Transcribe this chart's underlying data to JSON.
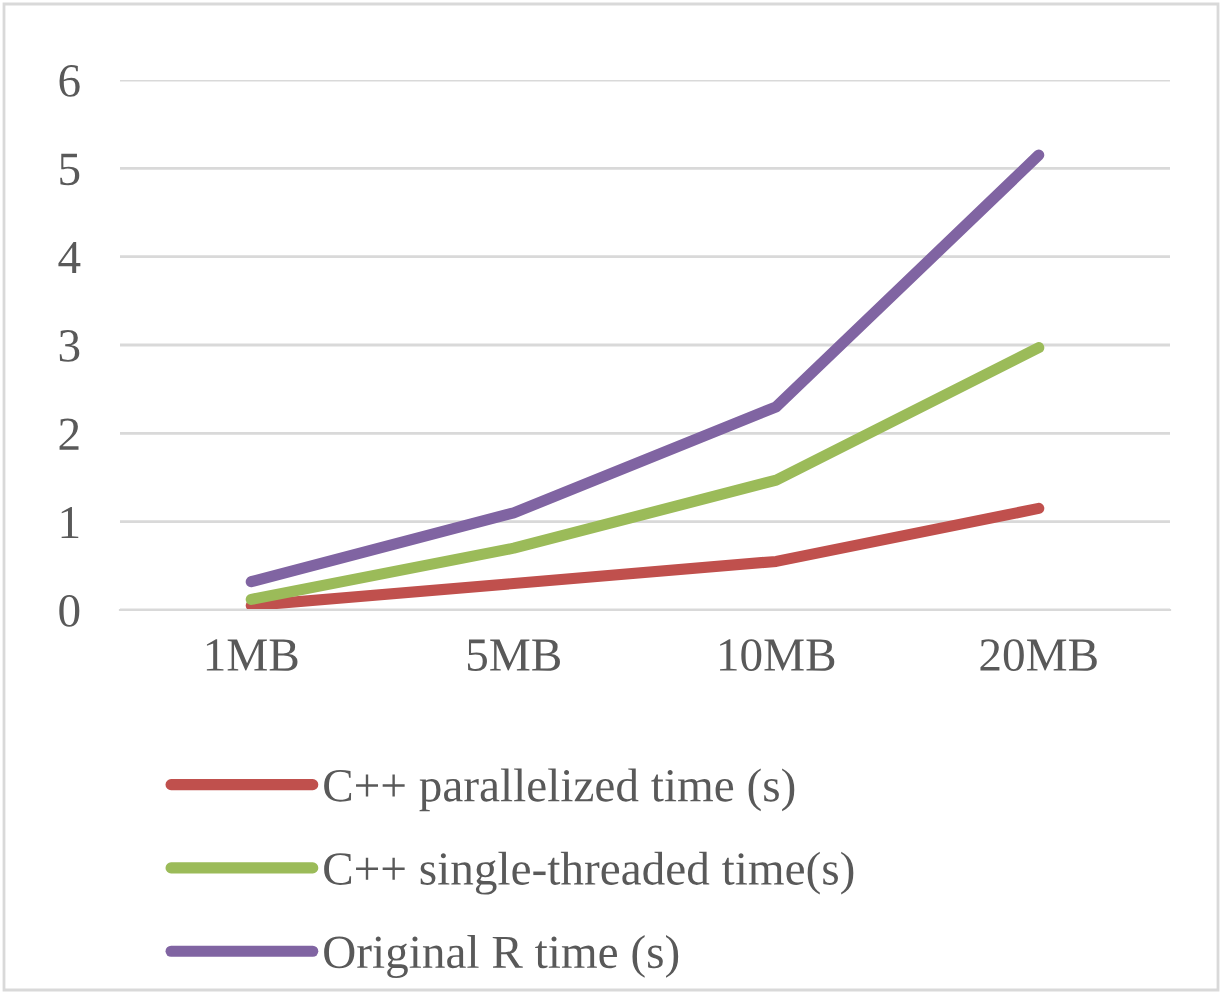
{
  "chart_data": {
    "type": "line",
    "categories": [
      "1MB",
      "5MB",
      "10MB",
      "20MB"
    ],
    "series": [
      {
        "name": "C++ parallelized time (s)",
        "color": "#c0504d",
        "values": [
          0.05,
          0.3,
          0.55,
          1.15
        ]
      },
      {
        "name": "C++ single-threaded time(s)",
        "color": "#9bbb59",
        "values": [
          0.12,
          0.7,
          1.47,
          2.97
        ]
      },
      {
        "name": "Original R time (s)",
        "color": "#8064a2",
        "values": [
          0.32,
          1.1,
          2.3,
          5.15
        ]
      }
    ],
    "ylim": [
      0,
      6
    ],
    "yticks": [
      0,
      1,
      2,
      3,
      4,
      5,
      6
    ],
    "grid": "y",
    "legend": "bottom",
    "marker": "none",
    "line_style": "solid"
  }
}
